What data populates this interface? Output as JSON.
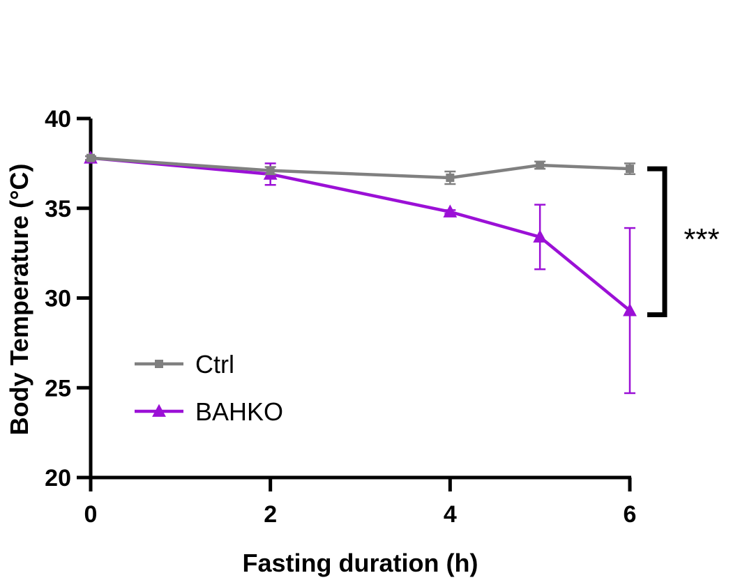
{
  "chart_data": {
    "type": "line",
    "title": "",
    "xlabel": "Fasting duration (h)",
    "ylabel": "Body Temperature (°C)",
    "xlim": [
      0,
      6
    ],
    "ylim": [
      20,
      40
    ],
    "xticks": [
      0,
      2,
      4,
      6
    ],
    "yticks": [
      20,
      25,
      30,
      35,
      40
    ],
    "grid": false,
    "legend_position": "lower-left",
    "series": [
      {
        "name": "Ctrl",
        "color": "#808080",
        "marker": "square",
        "x": [
          0,
          2,
          4,
          5,
          6
        ],
        "y": [
          37.8,
          37.1,
          36.7,
          37.4,
          37.2
        ],
        "error": [
          0.1,
          0.2,
          0.35,
          0.2,
          0.3
        ]
      },
      {
        "name": "BAHKO",
        "color": "#9b10d6",
        "marker": "triangle",
        "x": [
          0,
          2,
          4,
          5,
          6
        ],
        "y": [
          37.8,
          36.9,
          34.8,
          33.4,
          29.3
        ],
        "error": [
          0.1,
          0.6,
          0.1,
          1.8,
          4.6
        ]
      }
    ],
    "annotations": [
      {
        "text": "***",
        "between": [
          "Ctrl",
          "BAHKO"
        ],
        "at_x": 6
      }
    ]
  }
}
